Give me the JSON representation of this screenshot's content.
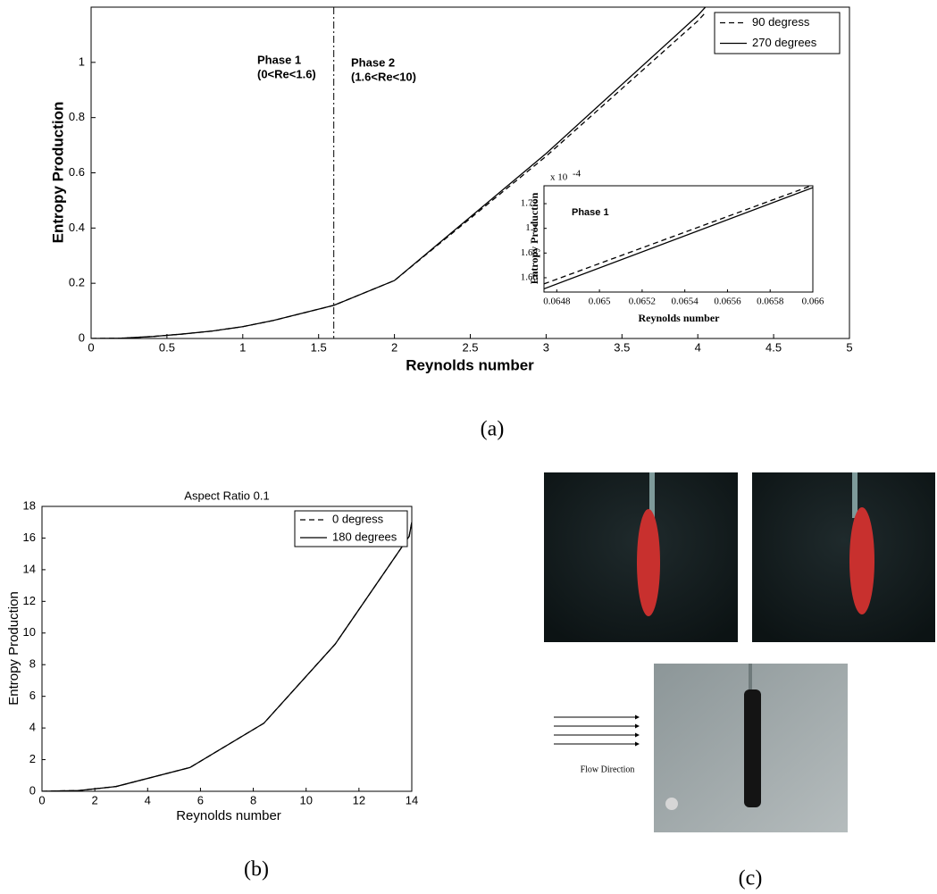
{
  "chart_data": [
    {
      "type": "line",
      "x_label": "Reynolds number",
      "y_label": "Entropy Production",
      "x": [
        0,
        0.2,
        0.4,
        0.6,
        0.8,
        1,
        1.2,
        1.6,
        2,
        3,
        4,
        4.05
      ],
      "series": [
        {
          "name": "90 degress",
          "color": "#000000",
          "dash": true,
          "values": [
            0,
            0.001,
            0.007,
            0.016,
            0.027,
            0.043,
            0.065,
            0.12,
            0.21,
            0.66,
            1.15,
            1.18
          ]
        },
        {
          "name": "270 degrees",
          "color": "#000000",
          "dash": false,
          "values": [
            0,
            0.001,
            0.007,
            0.016,
            0.027,
            0.043,
            0.065,
            0.12,
            0.21,
            0.67,
            1.17,
            1.2
          ]
        }
      ],
      "xlim": [
        0,
        5
      ],
      "xticks": [
        0,
        0.5,
        1,
        1.5,
        2,
        2.5,
        3,
        3.5,
        4,
        4.5,
        5
      ],
      "ylim": [
        0,
        1.2
      ],
      "yticks": [
        0,
        0.2,
        0.4,
        0.6,
        0.8,
        1
      ],
      "vline": 1.6,
      "annotations": [
        "Phase 1",
        "(0<Re<1.6)",
        "Phase 2",
        "(1.6<Re<10)"
      ],
      "legend": "upper right"
    },
    {
      "type": "line",
      "x_label": "Reynolds number",
      "y_label": "Entropy Production",
      "y_multiplier": {
        "base": "x 10",
        "exponent": "-4"
      },
      "x": [
        0.06474,
        0.066
      ],
      "series": [
        {
          "name": "90 degress",
          "color": "#000000",
          "dash": true,
          "values": [
            1.655,
            1.735
          ]
        },
        {
          "name": "270 degrees",
          "color": "#000000",
          "dash": false,
          "values": [
            1.651,
            1.733
          ]
        }
      ],
      "xlim": [
        0.06474,
        0.066
      ],
      "xticks": [
        0.0648,
        0.065,
        0.0652,
        0.0654,
        0.0656,
        0.0658,
        0.066
      ],
      "ylim": [
        1.6484,
        1.7345
      ],
      "yticks": [
        1.66,
        1.68,
        1.7,
        1.72
      ],
      "annotations": [
        "Phase 1"
      ]
    },
    {
      "type": "line",
      "title": "Aspect Ratio 0.1",
      "x_label": "Reynolds number",
      "y_label": "Entropy Production",
      "x": [
        0,
        1.4,
        2.8,
        5.6,
        8.4,
        11.1,
        13.9,
        14
      ],
      "series": [
        {
          "name": "0 degress",
          "color": "#000000",
          "dash": true,
          "values": [
            0,
            0.05,
            0.3,
            1.5,
            4.3,
            9.3,
            16.1,
            17
          ]
        },
        {
          "name": "180 degrees",
          "color": "#000000",
          "dash": false,
          "values": [
            0,
            0.05,
            0.3,
            1.5,
            4.3,
            9.3,
            16.1,
            17
          ]
        }
      ],
      "xlim": [
        0,
        14
      ],
      "xticks": [
        0,
        2,
        4,
        6,
        8,
        10,
        12,
        14
      ],
      "ylim": [
        0,
        18
      ],
      "yticks": [
        0,
        2,
        4,
        6,
        8,
        10,
        12,
        14,
        16,
        18
      ],
      "legend": "upper right"
    }
  ],
  "panel_labels": [
    "(a)",
    "(b)",
    "(c)"
  ],
  "photo": {
    "flow_label": "Flow Direction"
  }
}
